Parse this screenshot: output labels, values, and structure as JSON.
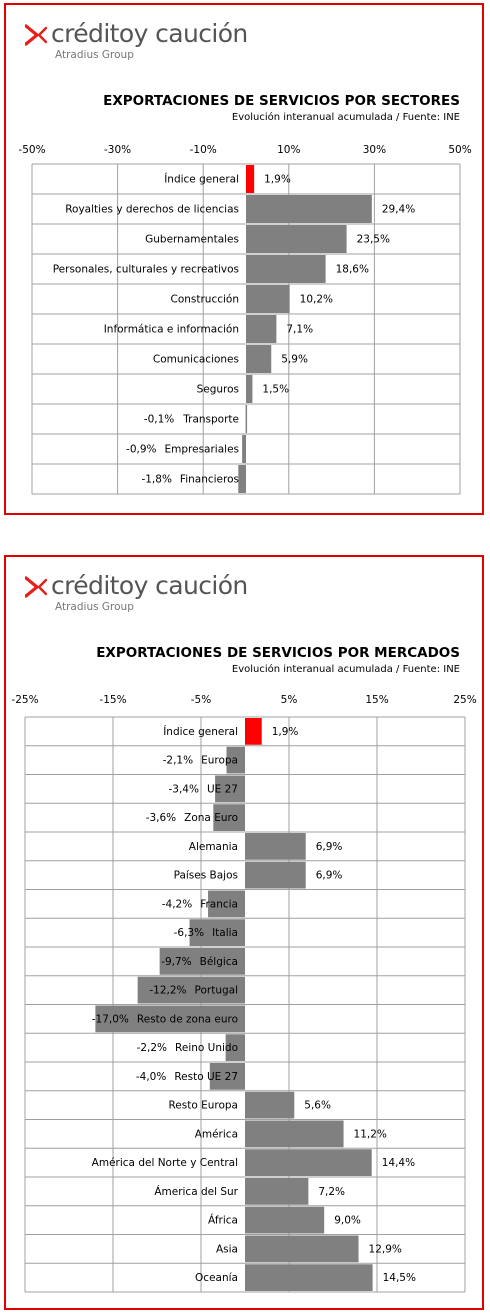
{
  "brand": {
    "name": "créditoy caución",
    "group": "Atradius Group",
    "accent_color": "#e4201c"
  },
  "chart_data": [
    {
      "type": "bar",
      "orientation": "horizontal",
      "title": "EXPORTACIONES DE SERVICIOS POR SECTORES",
      "subtitle": "Evolución interanual acumulada / Fuente: INE",
      "xlim": [
        -50,
        50
      ],
      "ticks": [
        -50,
        -30,
        -10,
        10,
        30,
        50
      ],
      "tick_labels": [
        "-50%",
        "-30%",
        "-10%",
        "10%",
        "30%",
        "50%"
      ],
      "grid": true,
      "categories": [
        "Índice general",
        "Royalties y derechos de licencias",
        "Gubernamentales",
        "Personales, culturales y recreativos",
        "Construcción",
        "Informática e información",
        "Comunicaciones",
        "Seguros",
        "Transporte",
        "Empresariales",
        "Financieros"
      ],
      "values": [
        1.9,
        29.4,
        23.5,
        18.6,
        10.2,
        7.1,
        5.9,
        1.5,
        -0.1,
        -0.9,
        -1.8
      ],
      "value_labels": [
        "1,9%",
        "29,4%",
        "23,5%",
        "18,6%",
        "10,2%",
        "7,1%",
        "5,9%",
        "1,5%",
        "-0,1%",
        "-0,9%",
        "-1,8%"
      ],
      "highlight_index": 0,
      "colors": {
        "bar": "#808080",
        "highlight": "#ff0000",
        "grid": "#a0a0a0"
      }
    },
    {
      "type": "bar",
      "orientation": "horizontal",
      "title": "EXPORTACIONES DE SERVICIOS POR MERCADOS",
      "subtitle": "Evolución interanual acumulada / Fuente: INE",
      "xlim": [
        -25,
        25
      ],
      "ticks": [
        -25,
        -15,
        -5,
        5,
        15,
        25
      ],
      "tick_labels": [
        "-25%",
        "-15%",
        "-5%",
        "5%",
        "15%",
        "25%"
      ],
      "grid": true,
      "categories": [
        "Índice general",
        "Europa",
        "UE 27",
        "Zona Euro",
        "Alemania",
        "Países Bajos",
        "Francia",
        "Italia",
        "Bélgica",
        "Portugal",
        "Resto de zona euro",
        "Reino Unido",
        "Resto UE 27",
        "Resto Europa",
        "América",
        "América del Norte y Central",
        "Ámerica del Sur",
        "África",
        "Asia",
        "Oceanía"
      ],
      "values": [
        1.9,
        -2.1,
        -3.4,
        -3.6,
        6.9,
        6.9,
        -4.2,
        -6.3,
        -9.7,
        -12.2,
        -17.0,
        -2.2,
        -4.0,
        5.6,
        11.2,
        14.4,
        7.2,
        9.0,
        12.9,
        14.5
      ],
      "value_labels": [
        "1,9%",
        "-2,1%",
        "-3,4%",
        "-3,6%",
        "6,9%",
        "6,9%",
        "-4,2%",
        "-6,3%",
        "-9,7%",
        "-12,2%",
        "-17,0%",
        "-2,2%",
        "-4,0%",
        "5,6%",
        "11,2%",
        "14,4%",
        "7,2%",
        "9,0%",
        "12,9%",
        "14,5%"
      ],
      "highlight_index": 0,
      "colors": {
        "bar": "#808080",
        "highlight": "#ff0000",
        "grid": "#a0a0a0"
      }
    }
  ]
}
